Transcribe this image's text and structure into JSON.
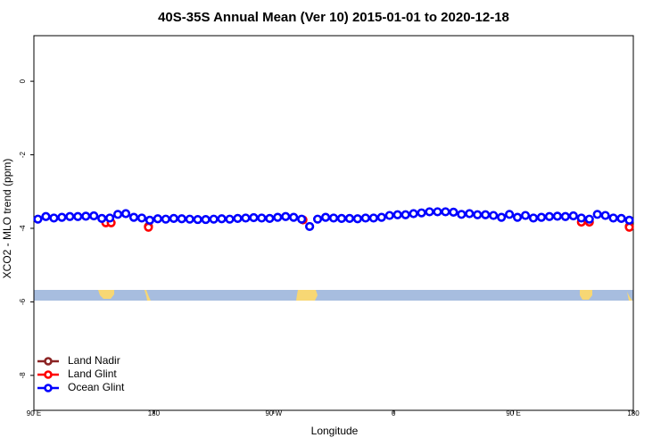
{
  "chart_data": {
    "type": "scatter",
    "title": "40S-35S Annual Mean (Ver 10)   2015-01-01 to 2020-12-18",
    "x_label": "Longitude",
    "y_label": "XCO2 - MLO trend (ppm)",
    "xlim": [
      90,
      540
    ],
    "ylim": [
      -8.95,
      1.24
    ],
    "xticks": [
      {
        "value": 90,
        "label": "90 E"
      },
      180,
      {
        "value": 270,
        "label": "90 W"
      },
      {
        "value": 360,
        "label": "0"
      },
      {
        "value": 450,
        "label": "90 E"
      },
      {
        "value": 540,
        "label": "180"
      }
    ],
    "yticks": [
      0,
      -2,
      -4,
      -6,
      -8
    ],
    "legend": "bottomleft",
    "series": [
      {
        "name": "Land Nadir",
        "color": "#8b2323",
        "x": [
          144,
          176,
          537
        ],
        "values": [
          -3.83,
          -3.95,
          -3.95
        ]
      },
      {
        "name": "Land Glint",
        "color": "#ff0000",
        "x": [
          144,
          148,
          176,
          292,
          501,
          507,
          537
        ],
        "values": [
          -3.85,
          -3.85,
          -3.97,
          -3.77,
          -3.83,
          -3.83,
          -3.97
        ]
      },
      {
        "name": "Ocean Glint",
        "color": "#0000ff",
        "x": [
          93,
          99,
          105,
          111,
          117,
          123,
          129,
          135,
          141,
          147,
          153,
          159,
          165,
          171,
          177,
          183,
          189,
          195,
          201,
          207,
          213,
          219,
          225,
          231,
          237,
          243,
          249,
          255,
          261,
          267,
          273,
          279,
          285,
          291,
          297,
          303,
          309,
          315,
          321,
          327,
          333,
          339,
          345,
          351,
          357,
          363,
          369,
          375,
          381,
          387,
          393,
          399,
          405,
          411,
          417,
          423,
          429,
          435,
          441,
          447,
          453,
          459,
          465,
          471,
          477,
          483,
          489,
          495,
          501,
          507,
          513,
          519,
          525,
          531,
          537
        ],
        "values": [
          -3.75,
          -3.68,
          -3.72,
          -3.7,
          -3.68,
          -3.68,
          -3.67,
          -3.66,
          -3.73,
          -3.72,
          -3.62,
          -3.6,
          -3.7,
          -3.72,
          -3.78,
          -3.74,
          -3.75,
          -3.73,
          -3.74,
          -3.75,
          -3.76,
          -3.76,
          -3.75,
          -3.74,
          -3.75,
          -3.73,
          -3.72,
          -3.71,
          -3.72,
          -3.73,
          -3.7,
          -3.68,
          -3.7,
          -3.75,
          -3.95,
          -3.75,
          -3.7,
          -3.72,
          -3.73,
          -3.73,
          -3.74,
          -3.72,
          -3.72,
          -3.7,
          -3.65,
          -3.63,
          -3.63,
          -3.6,
          -3.58,
          -3.55,
          -3.55,
          -3.55,
          -3.56,
          -3.62,
          -3.6,
          -3.63,
          -3.63,
          -3.65,
          -3.7,
          -3.62,
          -3.7,
          -3.65,
          -3.72,
          -3.7,
          -3.68,
          -3.67,
          -3.68,
          -3.66,
          -3.72,
          -3.75,
          -3.62,
          -3.65,
          -3.72,
          -3.73,
          -3.78
        ]
      }
    ]
  }
}
